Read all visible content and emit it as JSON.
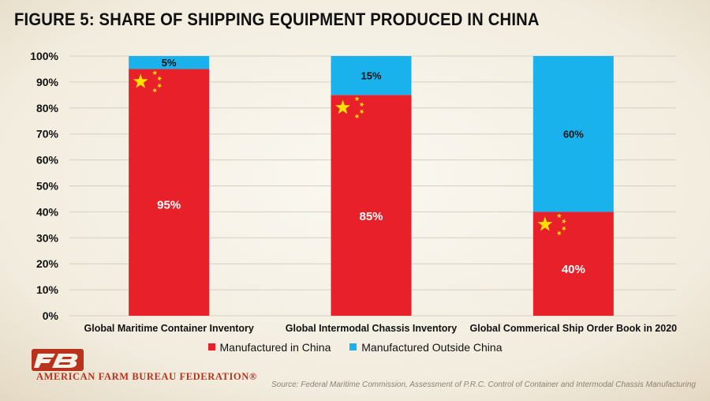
{
  "header": {
    "title": "FIGURE 5: SHARE OF SHIPPING EQUIPMENT PRODUCED IN CHINA"
  },
  "chart_data": {
    "type": "bar",
    "stacked": true,
    "categories": [
      "Global Maritime Container Inventory",
      "Global Intermodal Chassis Inventory",
      "Global Commerical Ship Order Book in 2020"
    ],
    "series": [
      {
        "name": "Manufactured in China",
        "values": [
          95,
          85,
          40
        ],
        "labels": [
          "95%",
          "85%",
          "40%"
        ],
        "color": "#e8202a"
      },
      {
        "name": "Manufactured Outside China",
        "values": [
          5,
          15,
          60
        ],
        "labels": [
          "5%",
          "15%",
          "60%"
        ],
        "color": "#1ab2ec"
      }
    ],
    "yticks": [
      "0%",
      "10%",
      "20%",
      "30%",
      "40%",
      "50%",
      "60%",
      "70%",
      "80%",
      "90%",
      "100%"
    ],
    "ylim": [
      0,
      100
    ],
    "grid": true,
    "legend": "bottom",
    "icons": [
      "china-flag-icon",
      "china-flag-icon",
      "china-flag-icon"
    ]
  },
  "footer": {
    "org": "AMERICAN FARM BUREAU FEDERATION®",
    "source": "Source: Federal Maritime Commission, Assessment of P.R.C. Control of Container and Intermodal Chassis Manufacturing"
  }
}
